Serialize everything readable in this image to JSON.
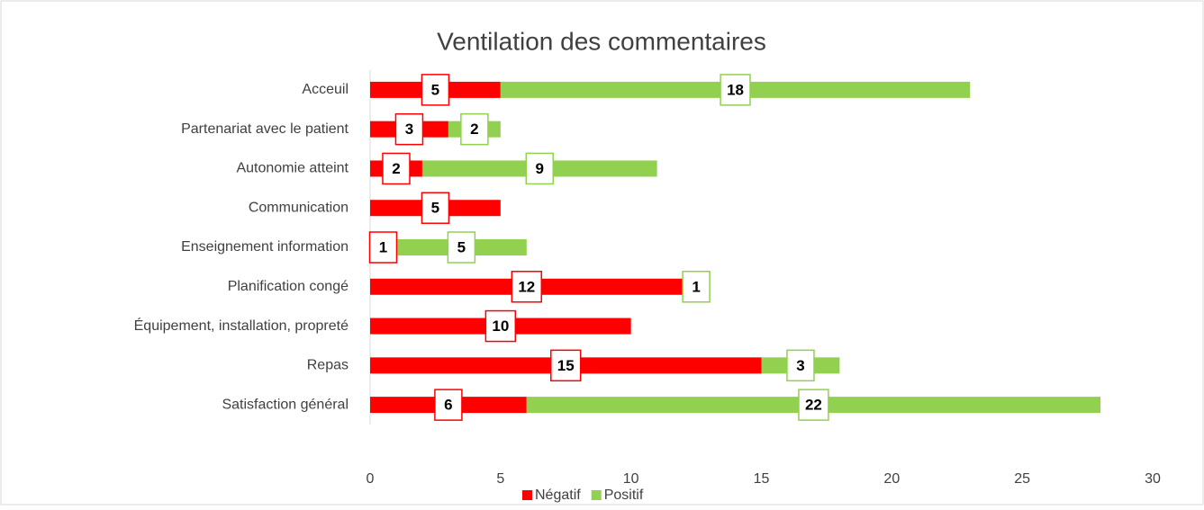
{
  "chart_data": {
    "type": "stacked-bar-horizontal",
    "title": "Ventilation des commentaires",
    "categories": [
      "Acceuil",
      "Partenariat avec le patient",
      "Autonomie atteint",
      "Communication",
      "Enseignement information",
      "Planification congé",
      "Équipement, installation, propreté",
      "Repas",
      "Satisfaction général"
    ],
    "series": [
      {
        "name": "Négatif",
        "color": "#ff0000",
        "values": [
          5,
          3,
          2,
          5,
          1,
          12,
          10,
          15,
          6
        ]
      },
      {
        "name": "Positif",
        "color": "#92d050",
        "values": [
          18,
          2,
          9,
          null,
          5,
          1,
          null,
          3,
          22
        ]
      }
    ],
    "xlim": [
      0,
      30
    ],
    "xticks": [
      0,
      5,
      10,
      15,
      20,
      25,
      30
    ],
    "legend": "bottom"
  }
}
